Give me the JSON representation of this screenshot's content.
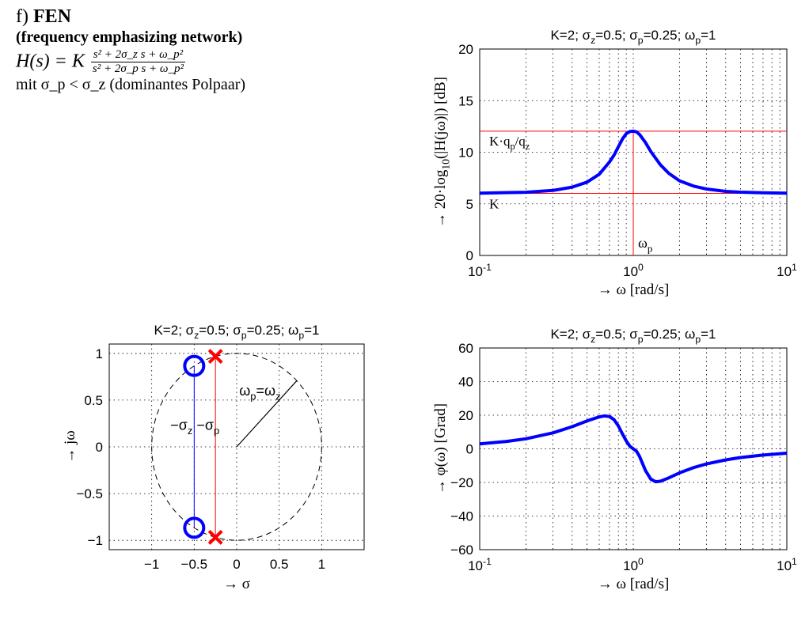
{
  "header": {
    "label": "f)",
    "name": "FEN",
    "subtitle": "(frequency emphasizing network)",
    "formula_lhs": "H(s) = K",
    "numerator": "s² + 2σ_z s + ω_p²",
    "denominator": "s² + 2σ_p s + ω_p²",
    "condition": "mit σ_p < σ_z (dominantes Polpaar)"
  },
  "colors": {
    "curve": "#0000ff",
    "ref": "#ff0000",
    "grid": "#000000",
    "dash": "#000000",
    "pz_line_zero": "#0000ff",
    "pz_line_pole": "#ff0000"
  },
  "chart_data": [
    {
      "id": "magnitude",
      "type": "line",
      "title": "K=2; σ_z=0.5; σ_p=0.25; ω_p=1",
      "xlabel": "→ ω [rad/s]",
      "ylabel": "→ 20·log10(|H(jω)|) [dB]",
      "xscale": "log",
      "xlim": [
        0.1,
        10
      ],
      "ylim": [
        0,
        20
      ],
      "xticks": [
        "10^-1",
        "10^0",
        "10^1"
      ],
      "yticks": [
        0,
        5,
        10,
        15,
        20
      ],
      "grid": true,
      "series": [
        {
          "x": [
            0.1,
            0.2,
            0.3,
            0.4,
            0.5,
            0.6,
            0.7,
            0.75,
            0.8,
            0.85,
            0.9,
            0.95,
            1.0,
            1.05,
            1.1,
            1.2,
            1.3,
            1.5,
            1.7,
            2.0,
            2.5,
            3.0,
            4.0,
            5.0,
            7.0,
            10.0
          ],
          "y": [
            6.04,
            6.12,
            6.3,
            6.62,
            7.1,
            7.87,
            9.05,
            9.73,
            10.54,
            11.28,
            11.8,
            12.01,
            12.04,
            11.98,
            11.72,
            10.94,
            10.08,
            8.79,
            7.97,
            7.23,
            6.7,
            6.44,
            6.21,
            6.13,
            6.07,
            6.04
          ]
        }
      ],
      "reference_lines": [
        {
          "kind": "h",
          "value": 12.04,
          "label": "K·q_p/q_z"
        },
        {
          "kind": "h",
          "value": 6.02,
          "label": "K"
        },
        {
          "kind": "v",
          "value": 1.0,
          "label": "ω_p"
        }
      ]
    },
    {
      "id": "pole_zero",
      "type": "scatter",
      "title": "K=2; σ_z=0.5; σ_p=0.25; ω_p=1",
      "xlabel": "→ σ",
      "ylabel": "→ jω",
      "xlim": [
        -1.5,
        1.5
      ],
      "ylim": [
        -1.1,
        1.1
      ],
      "xticks": [
        -1,
        -0.5,
        0,
        0.5,
        1
      ],
      "yticks": [
        -1,
        -0.5,
        0,
        0.5,
        1
      ],
      "grid": true,
      "zeros": [
        {
          "x": -0.5,
          "y": 0.866
        },
        {
          "x": -0.5,
          "y": -0.866
        }
      ],
      "poles": [
        {
          "x": -0.25,
          "y": 0.968
        },
        {
          "x": -0.25,
          "y": -0.968
        }
      ],
      "unit_circle_radius": 1,
      "annotations": {
        "sigma_label": "−σ_z −σ_p",
        "radius_label": "ω_p=ω_z"
      }
    },
    {
      "id": "phase",
      "type": "line",
      "title": "K=2; σ_z=0.5; σ_p=0.25; ω_p=1",
      "xlabel": "→ ω [rad/s]",
      "ylabel": "→ φ(ω) [Grad]",
      "xscale": "log",
      "xlim": [
        0.1,
        10
      ],
      "ylim": [
        -60,
        60
      ],
      "xticks": [
        "10^-1",
        "10^0",
        "10^1"
      ],
      "yticks": [
        -60,
        -40,
        -20,
        0,
        20,
        40,
        60
      ],
      "grid": true,
      "series": [
        {
          "x": [
            0.1,
            0.15,
            0.2,
            0.3,
            0.4,
            0.5,
            0.6,
            0.65,
            0.7,
            0.75,
            0.8,
            0.85,
            0.9,
            0.95,
            1.0,
            1.05,
            1.1,
            1.2,
            1.3,
            1.4,
            1.5,
            1.7,
            2.0,
            2.5,
            3.0,
            4.0,
            5.0,
            7.0,
            10.0
          ],
          "y": [
            2.9,
            4.4,
            6.0,
            9.5,
            13.2,
            16.6,
            19.0,
            19.6,
            19.2,
            17.3,
            13.6,
            8.9,
            4.7,
            1.5,
            0.0,
            -1.4,
            -4.6,
            -12.9,
            -18.0,
            -19.6,
            -19.3,
            -17.3,
            -14.3,
            -11.0,
            -9.0,
            -6.6,
            -5.2,
            -3.7,
            -2.6
          ]
        }
      ]
    }
  ]
}
